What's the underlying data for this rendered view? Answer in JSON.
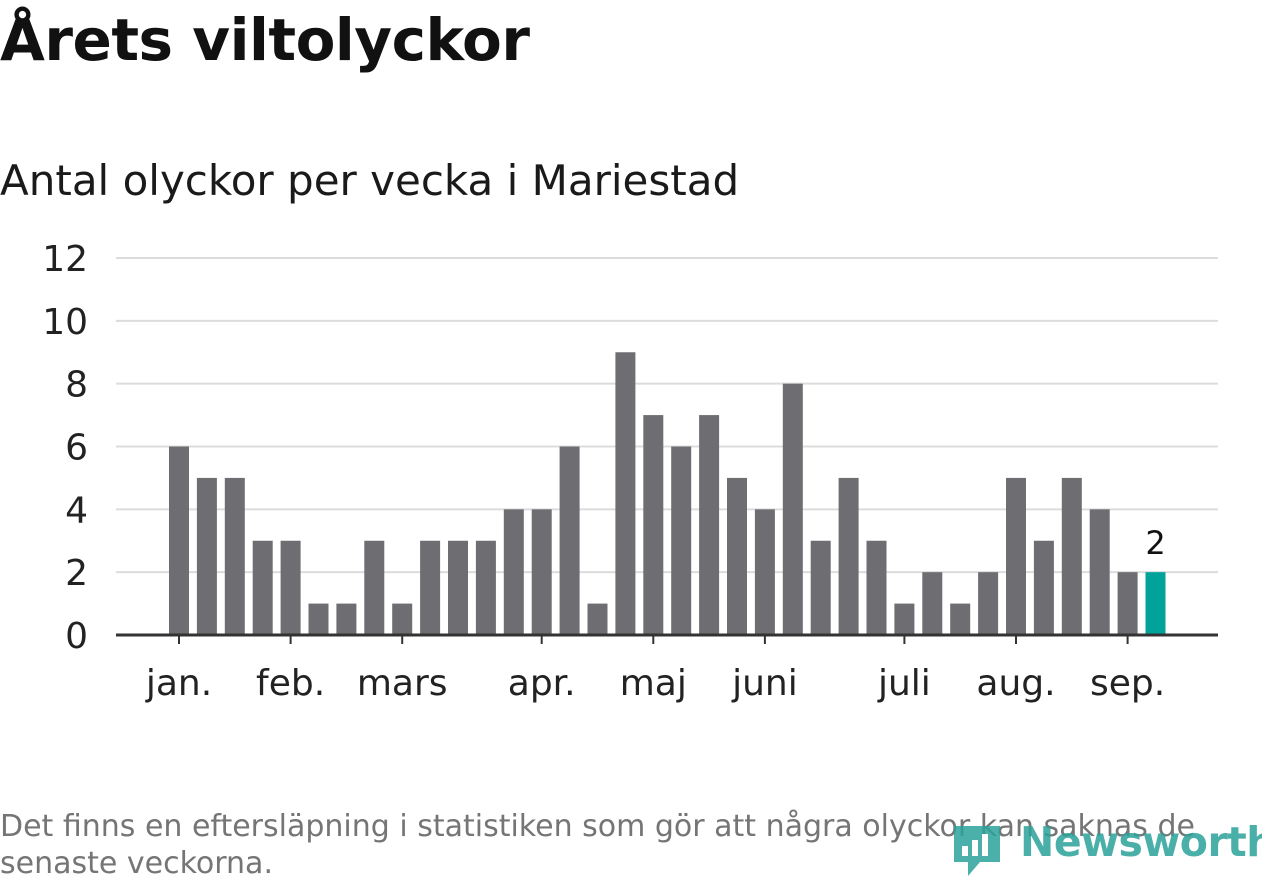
{
  "title": "Årets viltolyckor",
  "subtitle": "Antal olyckor per vecka i Mariestad",
  "footnote": "Det finns en eftersläpning i statistiken som gör att några olyckor kan saknas de senaste veckorna.",
  "logo": {
    "text": "Newsworthy",
    "color": "#2aa29a"
  },
  "chart_data": {
    "type": "bar",
    "ylim": [
      0,
      12
    ],
    "yticks": [
      "0",
      "2",
      "4",
      "6",
      "8",
      "10",
      "12"
    ],
    "grid": true,
    "bar_color": "#6e6d72",
    "highlight_color": "#00a29a",
    "values": [
      6,
      5,
      5,
      3,
      3,
      1,
      1,
      3,
      1,
      3,
      3,
      3,
      4,
      4,
      6,
      1,
      9,
      7,
      6,
      7,
      5,
      4,
      8,
      3,
      5,
      3,
      1,
      2,
      1,
      2,
      5,
      3,
      5,
      4,
      2,
      2
    ],
    "highlight_index": 35,
    "highlight_label": "2",
    "month_labels": [
      {
        "label": "jan.",
        "bar_index": 0
      },
      {
        "label": "feb.",
        "bar_index": 4
      },
      {
        "label": "mars",
        "bar_index": 8
      },
      {
        "label": "apr.",
        "bar_index": 13
      },
      {
        "label": "maj",
        "bar_index": 17
      },
      {
        "label": "juni",
        "bar_index": 21
      },
      {
        "label": "juli",
        "bar_index": 26
      },
      {
        "label": "aug.",
        "bar_index": 30
      },
      {
        "label": "sep.",
        "bar_index": 34
      }
    ]
  }
}
